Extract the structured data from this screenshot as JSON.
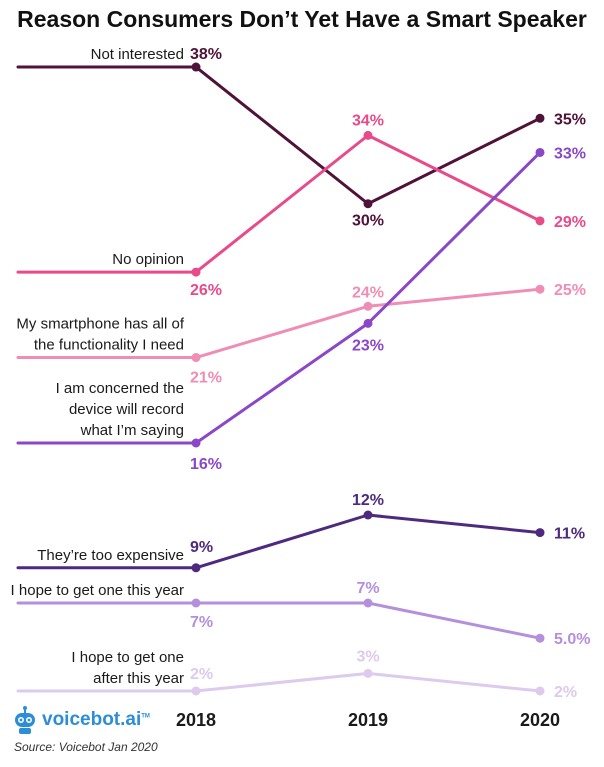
{
  "chart_data": {
    "type": "line",
    "title": "Reason Consumers Don’t Yet Have a Smart Speaker",
    "x": [
      "2018",
      "2019",
      "2020"
    ],
    "series": [
      {
        "name": "Not interested",
        "label_lines": [
          "Not interested"
        ],
        "values": [
          38,
          30,
          35
        ],
        "labels": [
          "38%",
          "30%",
          "35%"
        ],
        "color": "#4f1238"
      },
      {
        "name": "No opinion",
        "label_lines": [
          "No opinion"
        ],
        "values": [
          26,
          34,
          29
        ],
        "labels": [
          "26%",
          "34%",
          "29%"
        ],
        "color": "#e84a8a"
      },
      {
        "name": "My smartphone has all of the functionality I need",
        "label_lines": [
          "My smartphone has all of",
          "the functionality I need"
        ],
        "values": [
          21,
          24,
          25
        ],
        "labels": [
          "21%",
          "24%",
          "25%"
        ],
        "color": "#f08db5"
      },
      {
        "name": "I am concerned the device will record what I’m saying",
        "label_lines": [
          "I am concerned the",
          "device will record",
          "what I’m saying"
        ],
        "values": [
          16,
          23,
          33
        ],
        "labels": [
          "16%",
          "23%",
          "33%"
        ],
        "color": "#8a48c8"
      },
      {
        "name": "They’re too expensive",
        "label_lines": [
          "They’re too expensive"
        ],
        "values": [
          9,
          12,
          11
        ],
        "labels": [
          "9%",
          "12%",
          "11%"
        ],
        "color": "#4e2a7e"
      },
      {
        "name": "I hope to get one this year",
        "label_lines": [
          "I hope to get one this year"
        ],
        "values": [
          7,
          7,
          5.0
        ],
        "labels": [
          "7%",
          "7%",
          "5.0%"
        ],
        "color": "#b48fdc"
      },
      {
        "name": "I hope to get one after this year",
        "label_lines": [
          "I hope to get one",
          "after this year"
        ],
        "values": [
          2,
          3,
          2
        ],
        "labels": [
          "2%",
          "3%",
          "2%"
        ],
        "color": "#dccbec"
      }
    ],
    "legend": "left, inline labels"
  },
  "branding": {
    "logo_name": "voicebot",
    "logo_tld": ".ai",
    "logo_tm": "TM",
    "accent": "#2c8ed6"
  },
  "source": "Source: Voicebot Jan 2020"
}
